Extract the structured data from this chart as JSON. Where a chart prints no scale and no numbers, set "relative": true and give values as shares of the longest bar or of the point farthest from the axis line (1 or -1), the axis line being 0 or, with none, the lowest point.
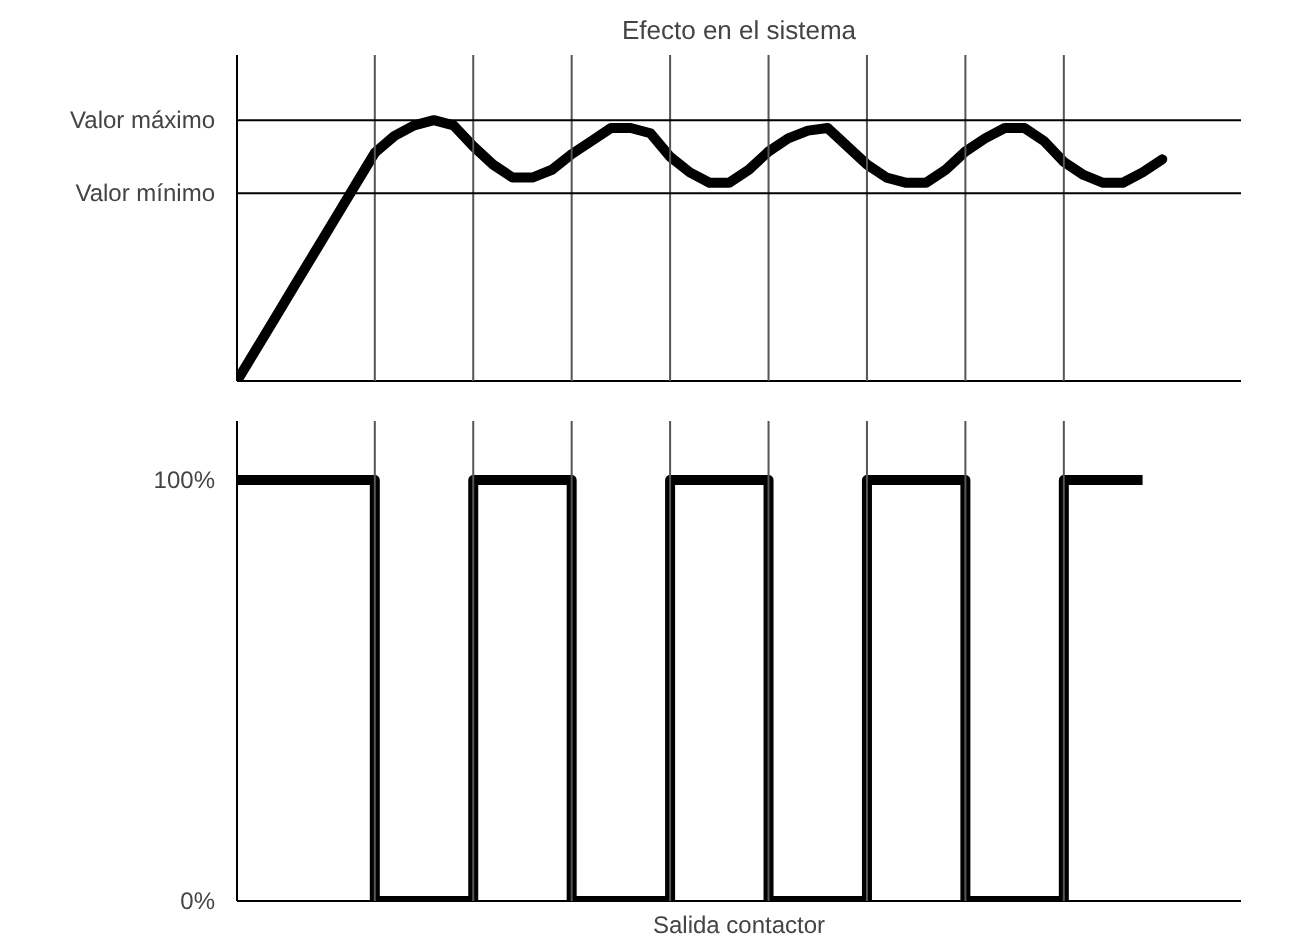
{
  "chart_data": [
    {
      "type": "line",
      "title": "Efecto en el sistema",
      "categories": [
        null,
        null,
        null,
        null,
        null,
        null,
        null,
        null,
        null,
        null,
        null,
        null,
        null,
        null,
        null,
        null,
        null,
        null,
        null,
        null,
        null,
        null,
        null,
        null,
        null,
        null,
        null,
        null,
        null,
        null,
        null,
        null,
        null,
        null,
        null,
        null,
        null,
        null,
        null,
        null,
        null,
        null,
        null,
        null,
        null,
        null,
        null,
        null,
        null,
        null,
        null,
        null
      ],
      "values": [
        0,
        0.125,
        0.25,
        0.375,
        0.5,
        0.625,
        0.75,
        0.875,
        0.94,
        0.98,
        1.0,
        0.98,
        0.9,
        0.83,
        0.78,
        0.78,
        0.81,
        0.87,
        0.92,
        0.97,
        0.97,
        0.95,
        0.86,
        0.8,
        0.76,
        0.76,
        0.81,
        0.88,
        0.93,
        0.96,
        0.97,
        0.9,
        0.83,
        0.78,
        0.76,
        0.76,
        0.81,
        0.88,
        0.93,
        0.97,
        0.97,
        0.92,
        0.84,
        0.79,
        0.76,
        0.76,
        0.8,
        0.85,
        null,
        null,
        null,
        null
      ],
      "color": "#000000",
      "relative": true,
      "grid": "x",
      "ref_lines": [
        {
          "axis": "y",
          "value": 1.0,
          "label": "Valor máximo"
        },
        {
          "axis": "y",
          "value": 0.72,
          "label": "Valor mínimo"
        }
      ]
    },
    {
      "type": "step",
      "xlabel": "Salida contactor",
      "categories": [
        null,
        null,
        null,
        null,
        null,
        null,
        null,
        null,
        null,
        null,
        null,
        null,
        null,
        null,
        null,
        null,
        null,
        null,
        null,
        null,
        null,
        null,
        null,
        null,
        null,
        null,
        null,
        null,
        null,
        null,
        null,
        null,
        null,
        null,
        null,
        null,
        null,
        null,
        null,
        null,
        null,
        null,
        null,
        null,
        null,
        null,
        null,
        null,
        null,
        null,
        null,
        null
      ],
      "values": [
        100,
        100,
        100,
        100,
        100,
        100,
        100,
        0,
        0,
        0,
        0,
        0,
        100,
        100,
        100,
        100,
        100,
        0,
        0,
        0,
        0,
        0,
        100,
        100,
        100,
        100,
        100,
        0,
        0,
        0,
        0,
        0,
        100,
        100,
        100,
        100,
        100,
        0,
        0,
        0,
        0,
        0,
        100,
        100,
        100,
        100,
        100,
        null,
        null,
        null,
        null,
        null
      ],
      "color": "#000000",
      "ylim": [
        0,
        114
      ],
      "yticks": [
        {
          "value": 0,
          "label": "0%"
        },
        {
          "value": 100,
          "label": "100%"
        }
      ],
      "grid": "x",
      "tick_labels": "y"
    }
  ]
}
